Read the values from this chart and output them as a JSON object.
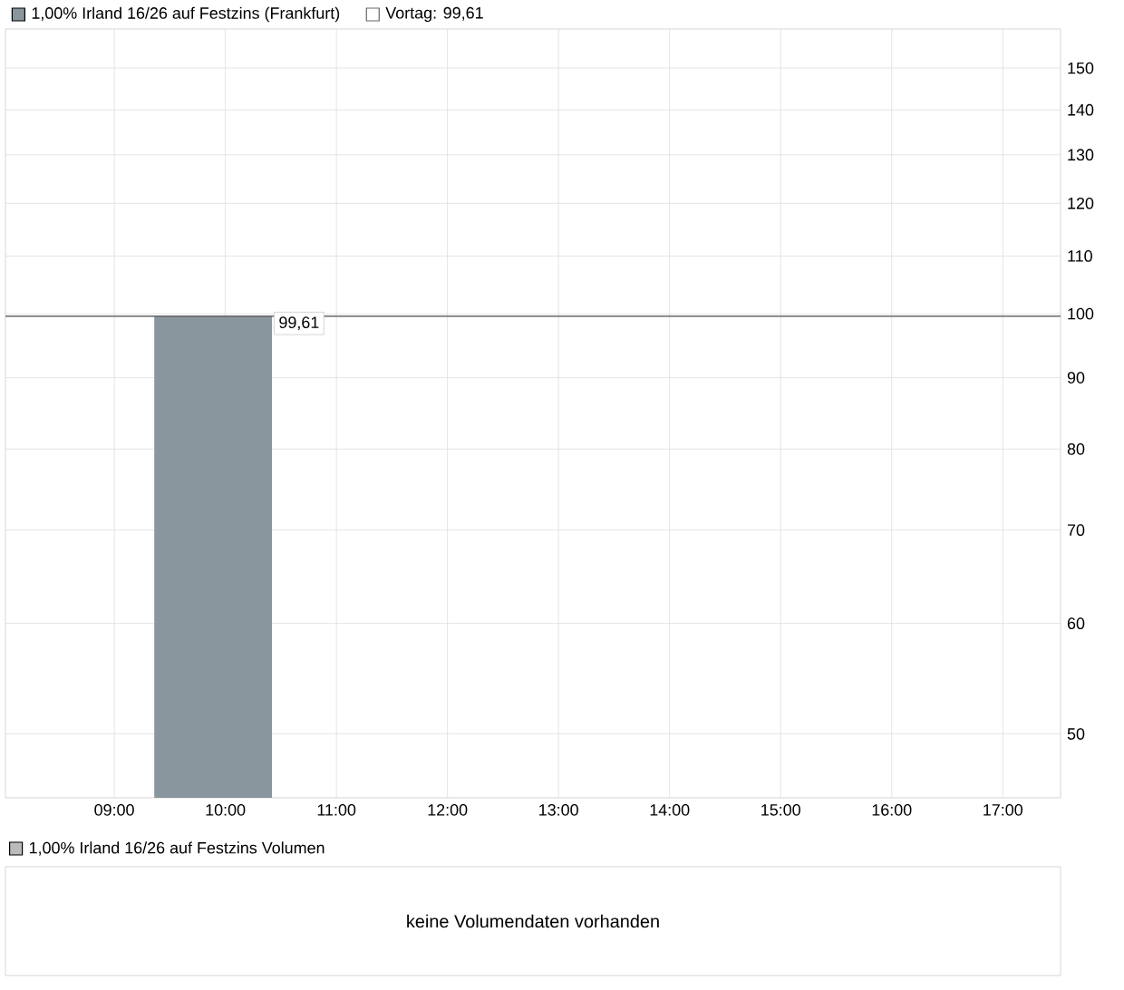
{
  "chart_data": [
    {
      "type": "area",
      "x": [
        9.36,
        10.42
      ],
      "series": [
        {
          "name": "1,00% Irland 16/26 auf Festzins (Frankfurt)",
          "color": "#8a969e",
          "values": [
            99.61,
            99.61
          ]
        }
      ],
      "xlim": [
        8.02,
        17.52
      ],
      "ylim": [
        45,
        160
      ],
      "log": "y",
      "xticks": [
        {
          "value": 9,
          "label": "09:00"
        },
        {
          "value": 10,
          "label": "10:00"
        },
        {
          "value": 11,
          "label": "11:00"
        },
        {
          "value": 12,
          "label": "12:00"
        },
        {
          "value": 13,
          "label": "13:00"
        },
        {
          "value": 14,
          "label": "14:00"
        },
        {
          "value": 15,
          "label": "15:00"
        },
        {
          "value": 16,
          "label": "16:00"
        },
        {
          "value": 17,
          "label": "17:00"
        }
      ],
      "yticks": [
        50,
        60,
        70,
        80,
        90,
        100,
        110,
        120,
        130,
        140,
        150
      ],
      "ref_lines": [
        {
          "axis": "y",
          "value": 99.61,
          "label": "Vortag: 99,61",
          "color": "#666666"
        }
      ],
      "annotations": [
        {
          "text": "99,61",
          "x": 10.42,
          "y": 99.61
        }
      ],
      "grid": true,
      "legend": "top left"
    },
    {
      "type": "other",
      "title": "1,00% Irland 16/26 auf Festzins Volumen",
      "annotations": [
        "keine Volumendaten vorhanden"
      ]
    }
  ]
}
